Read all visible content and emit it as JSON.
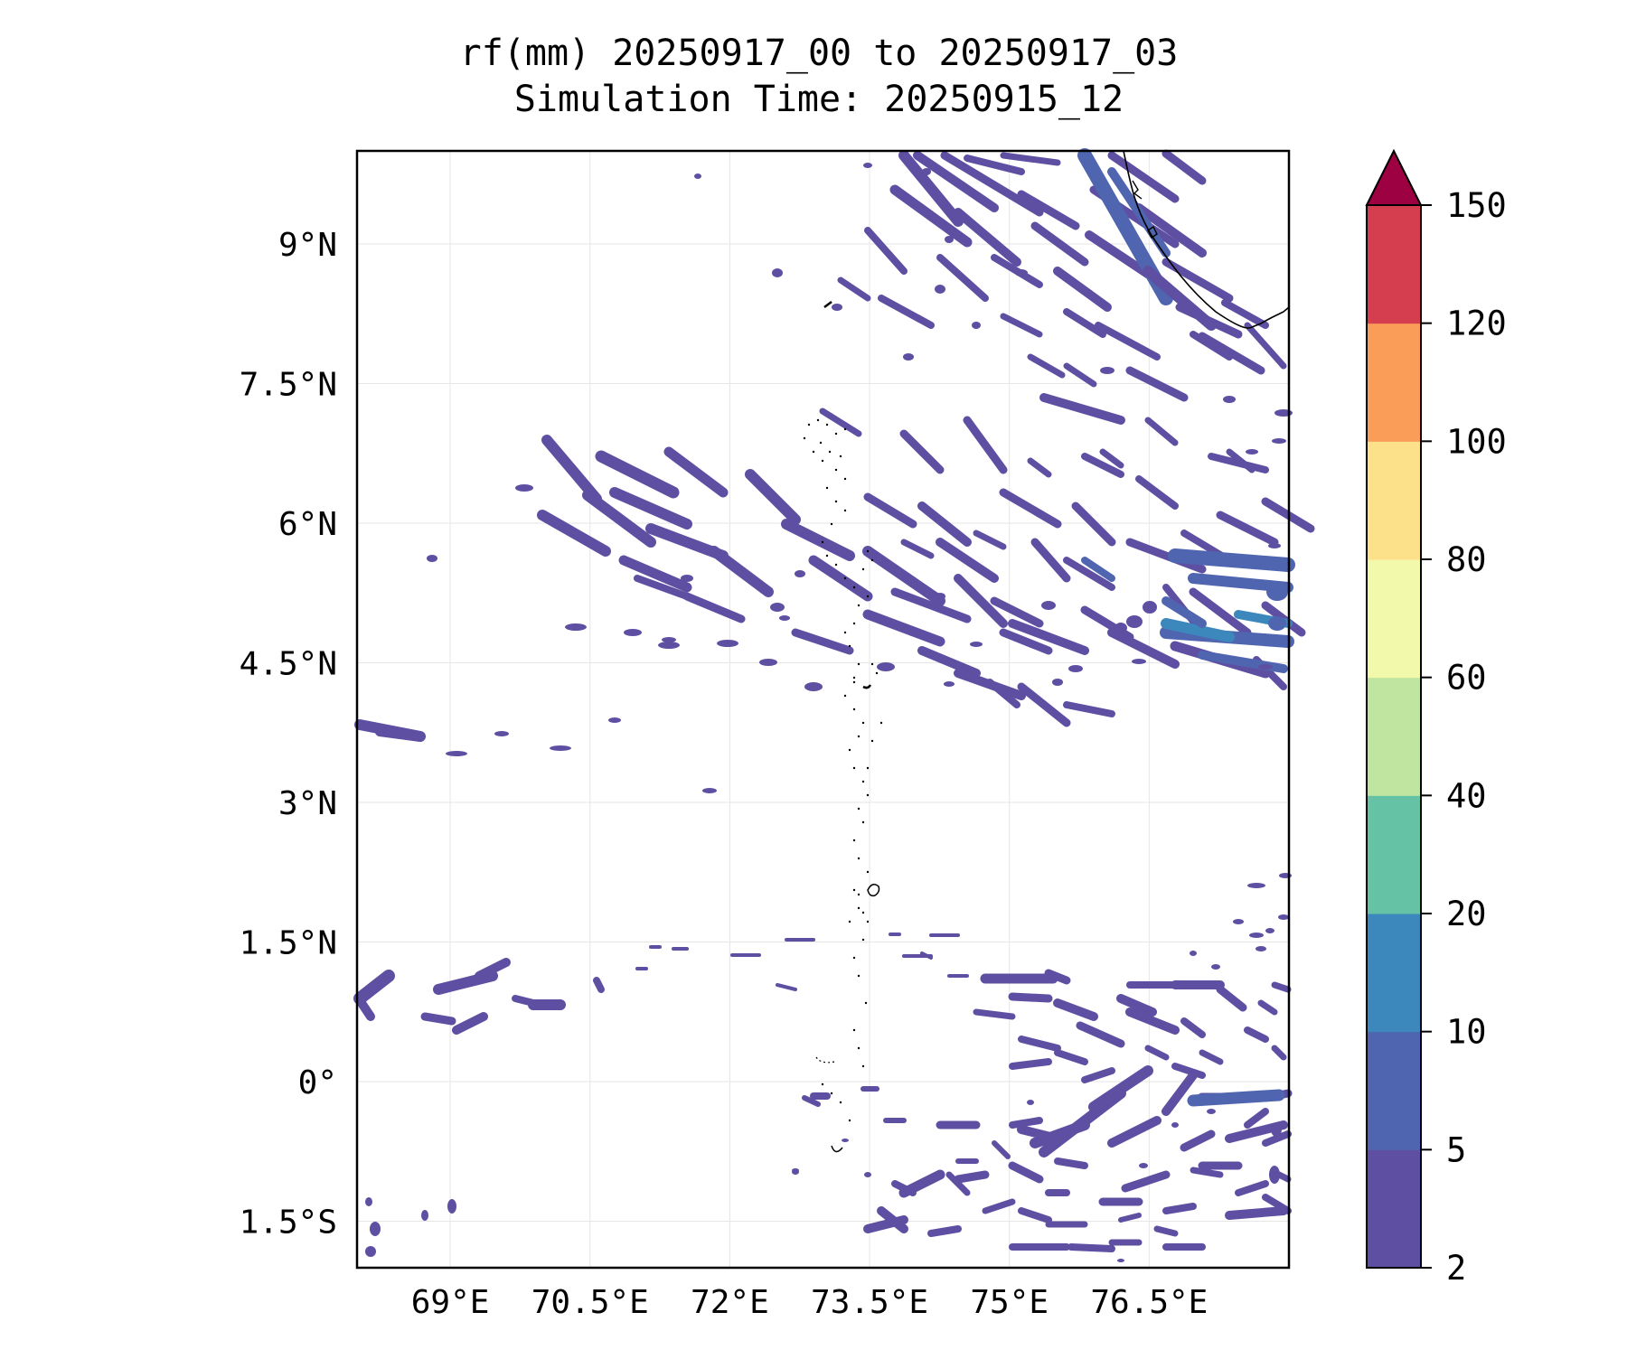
{
  "title_line1": "rf(mm) 20250917_00 to 20250917_03",
  "title_line2": "Simulation Time: 20250915_12",
  "map": {
    "lon_range": [
      68.0,
      78.0
    ],
    "lat_range": [
      -2.0,
      10.0
    ],
    "lon_ticks": [
      {
        "value": 69.0,
        "label": "69°E"
      },
      {
        "value": 70.5,
        "label": "70.5°E"
      },
      {
        "value": 72.0,
        "label": "72°E"
      },
      {
        "value": 73.5,
        "label": "73.5°E"
      },
      {
        "value": 75.0,
        "label": "75°E"
      },
      {
        "value": 76.5,
        "label": "76.5°E"
      }
    ],
    "lat_ticks": [
      {
        "value": 9.0,
        "label": "9°N"
      },
      {
        "value": 7.5,
        "label": "7.5°N"
      },
      {
        "value": 6.0,
        "label": "6°N"
      },
      {
        "value": 4.5,
        "label": "4.5°N"
      },
      {
        "value": 3.0,
        "label": "3°N"
      },
      {
        "value": 1.5,
        "label": "1.5°N"
      },
      {
        "value": 0.0,
        "label": "0°"
      },
      {
        "value": -1.5,
        "label": "1.5°S"
      }
    ],
    "grid": true,
    "coastline_color": "#000000",
    "rain_color_low": "#5e4fa2",
    "rain_color_mid": "#4f65b0",
    "rain_color_high": "#3c88bd"
  },
  "colorbar": {
    "levels": [
      2,
      5,
      10,
      20,
      40,
      60,
      80,
      100,
      120,
      150
    ],
    "labels": [
      "2",
      "5",
      "10",
      "20",
      "40",
      "60",
      "80",
      "100",
      "120",
      "150"
    ],
    "colors": [
      "#5e4fa2",
      "#4f65b0",
      "#3c88bd",
      "#66c2a5",
      "#bfe5a0",
      "#f3f9aa",
      "#fce08a",
      "#f99d59",
      "#d53e4f"
    ],
    "extend_color": "#9e0142",
    "extend": "max"
  }
}
